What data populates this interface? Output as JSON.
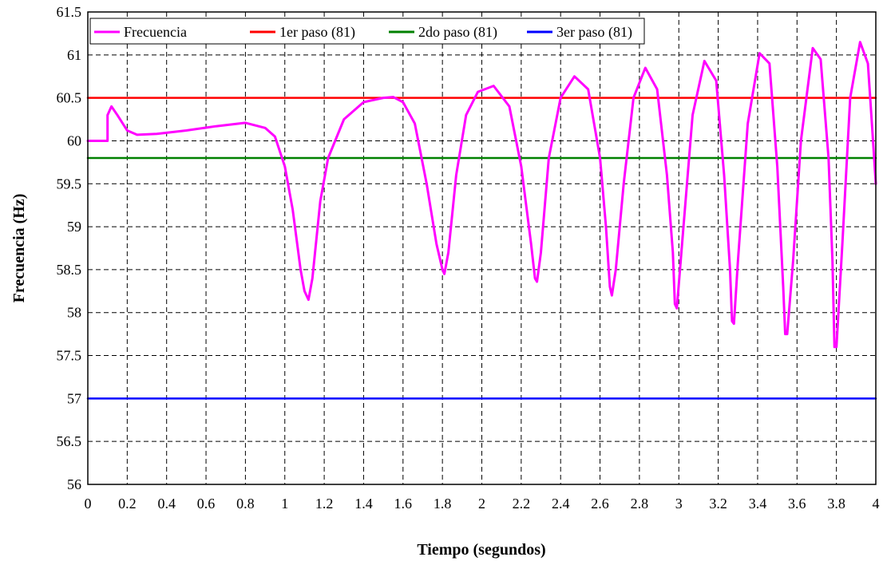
{
  "chart_data": {
    "type": "line",
    "title": "",
    "xlabel": "Tiempo (segundos)",
    "ylabel": "Frecuencia (Hz)",
    "xlim": [
      0,
      4
    ],
    "ylim": [
      56,
      61.5
    ],
    "x_ticks": [
      "0",
      "0.2",
      "0.4",
      "0.6",
      "0.8",
      "1",
      "1.2",
      "1.4",
      "1.6",
      "1.8",
      "2",
      "2.2",
      "2.4",
      "2.6",
      "2.8",
      "3",
      "3.2",
      "3.4",
      "3.6",
      "3.8",
      "4"
    ],
    "y_ticks": [
      "56",
      "56.5",
      "57",
      "57.5",
      "58",
      "58.5",
      "59",
      "59.5",
      "60",
      "60.5",
      "61",
      "61.5"
    ],
    "grid": true,
    "legend_position": "top-left",
    "series": [
      {
        "name": "Frecuencia",
        "color": "#ff00ff",
        "x": [
          0,
          0.1,
          0.1,
          0.12,
          0.15,
          0.2,
          0.25,
          0.35,
          0.5,
          0.65,
          0.8,
          0.9,
          0.95,
          1.0,
          1.04,
          1.08,
          1.1,
          1.12,
          1.14,
          1.18,
          1.22,
          1.3,
          1.4,
          1.5,
          1.55,
          1.6,
          1.66,
          1.72,
          1.77,
          1.8,
          1.81,
          1.83,
          1.87,
          1.92,
          1.98,
          2.06,
          2.14,
          2.2,
          2.25,
          2.27,
          2.28,
          2.3,
          2.34,
          2.4,
          2.47,
          2.54,
          2.6,
          2.63,
          2.65,
          2.66,
          2.68,
          2.72,
          2.77,
          2.83,
          2.89,
          2.94,
          2.97,
          2.98,
          2.99,
          3.02,
          3.07,
          3.13,
          3.19,
          3.23,
          3.26,
          3.27,
          3.28,
          3.3,
          3.35,
          3.41,
          3.46,
          3.5,
          3.53,
          3.54,
          3.55,
          3.58,
          3.62,
          3.68,
          3.72,
          3.76,
          3.78,
          3.79,
          3.8,
          3.83,
          3.87,
          3.92,
          3.96,
          3.98,
          4.0
        ],
        "y": [
          60,
          60,
          60.3,
          60.4,
          60.3,
          60.12,
          60.07,
          60.08,
          60.12,
          60.17,
          60.21,
          60.15,
          60.05,
          59.7,
          59.2,
          58.5,
          58.25,
          58.15,
          58.4,
          59.3,
          59.8,
          60.25,
          60.45,
          60.5,
          60.51,
          60.45,
          60.2,
          59.5,
          58.8,
          58.5,
          58.45,
          58.7,
          59.6,
          60.3,
          60.57,
          60.64,
          60.4,
          59.7,
          58.8,
          58.4,
          58.36,
          58.7,
          59.8,
          60.5,
          60.75,
          60.6,
          59.8,
          59.0,
          58.3,
          58.2,
          58.5,
          59.5,
          60.5,
          60.85,
          60.6,
          59.6,
          58.7,
          58.1,
          58.05,
          58.9,
          60.3,
          60.93,
          60.7,
          59.6,
          58.5,
          57.9,
          57.87,
          58.6,
          60.2,
          61.02,
          60.9,
          59.7,
          58.3,
          57.75,
          57.75,
          58.6,
          60.0,
          61.08,
          60.95,
          59.8,
          58.6,
          57.6,
          57.6,
          58.8,
          60.5,
          61.15,
          60.9,
          60.2,
          59.5
        ]
      },
      {
        "name": "1er paso (81)",
        "color": "#ff0000",
        "x": [
          0,
          4
        ],
        "y": [
          60.5,
          60.5
        ]
      },
      {
        "name": "2do paso (81)",
        "color": "#008000",
        "x": [
          0,
          4
        ],
        "y": [
          59.8,
          59.8
        ]
      },
      {
        "name": "3er paso (81)",
        "color": "#0000ff",
        "x": [
          0,
          4
        ],
        "y": [
          57,
          57
        ]
      }
    ]
  }
}
